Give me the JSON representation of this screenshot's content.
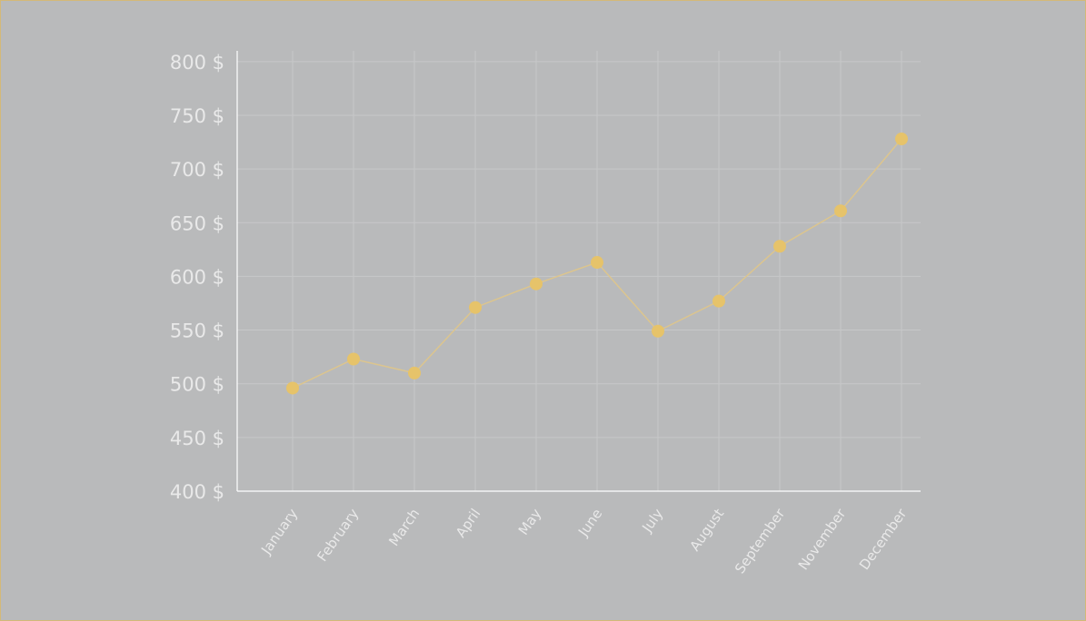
{
  "colors": {
    "background": "#b9babb",
    "border": "#d4b978",
    "series": "#e6c36a",
    "line": "#dcc58e",
    "grid": "#c7c8c9",
    "axis": "#ffffff",
    "text": "#e9e9e9"
  },
  "chart_data": {
    "type": "line",
    "categories": [
      "January",
      "February",
      "March",
      "April",
      "May",
      "June",
      "July",
      "August",
      "September",
      "November",
      "December"
    ],
    "series": [
      {
        "values": [
          496,
          523,
          510,
          571,
          593,
          613,
          549,
          577,
          628,
          661,
          728
        ]
      }
    ],
    "ylim": [
      400,
      810
    ],
    "yticks": [
      400,
      450,
      500,
      550,
      600,
      650,
      700,
      750,
      800
    ],
    "ytick_labels": [
      "400 $",
      "450 $",
      "500 $",
      "550 $",
      "600 $",
      "650 $",
      "700 $",
      "750 $",
      "800 $"
    ],
    "grid": true,
    "legend": "none"
  }
}
